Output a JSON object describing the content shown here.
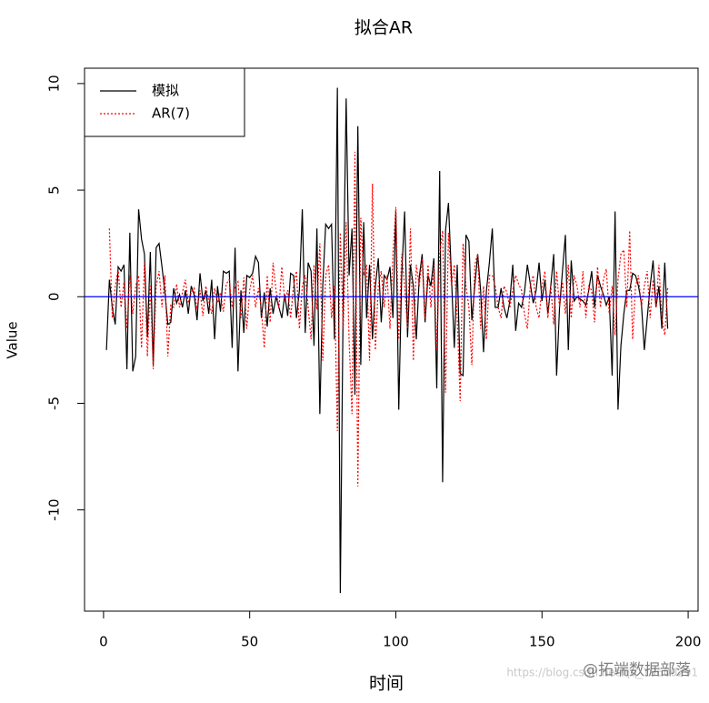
{
  "chart_data": {
    "type": "line",
    "title": "拟合AR",
    "x_label": "时间",
    "y_label": "Value",
    "x": [
      1,
      2,
      3,
      4,
      5,
      6,
      7,
      8,
      9,
      10,
      11,
      12,
      13,
      14,
      15,
      16,
      17,
      18,
      19,
      20,
      21,
      22,
      23,
      24,
      25,
      26,
      27,
      28,
      29,
      30,
      31,
      32,
      33,
      34,
      35,
      36,
      37,
      38,
      39,
      40,
      41,
      42,
      43,
      44,
      45,
      46,
      47,
      48,
      49,
      50,
      51,
      52,
      53,
      54,
      55,
      56,
      57,
      58,
      59,
      60,
      61,
      62,
      63,
      64,
      65,
      66,
      67,
      68,
      69,
      70,
      71,
      72,
      73,
      74,
      75,
      76,
      77,
      78,
      79,
      80,
      81,
      82,
      83,
      84,
      85,
      86,
      87,
      88,
      89,
      90,
      91,
      92,
      93,
      94,
      95,
      96,
      97,
      98,
      99,
      100,
      101,
      102,
      103,
      104,
      105,
      106,
      107,
      108,
      109,
      110,
      111,
      112,
      113,
      114,
      115,
      116,
      117,
      118,
      119,
      120,
      121,
      122,
      123,
      124,
      125,
      126,
      127,
      128,
      129,
      130,
      131,
      132,
      133,
      134,
      135,
      136,
      137,
      138,
      139,
      140,
      141,
      142,
      143,
      144,
      145,
      146,
      147,
      148,
      149,
      150,
      151,
      152,
      153,
      154,
      155,
      156,
      157,
      158,
      159,
      160,
      161,
      162,
      163,
      164,
      165,
      166,
      167,
      168,
      169,
      170,
      171,
      172,
      173,
      174,
      175,
      176,
      177,
      178,
      179,
      180,
      181,
      182,
      183,
      184,
      185,
      186,
      187,
      188,
      189,
      190,
      191,
      192,
      193
    ],
    "series": [
      {
        "name": "模拟",
        "color": "#000000",
        "dash": "solid",
        "values": [
          -2.5,
          0.8,
          -0.5,
          -1.3,
          1.4,
          1.2,
          1.5,
          -3.4,
          3.0,
          -3.5,
          -2.8,
          4.1,
          2.7,
          2.0,
          -1.9,
          2.1,
          -3.2,
          2.3,
          2.5,
          1.4,
          0.2,
          -1.3,
          -1.2,
          0.4,
          -0.3,
          0.1,
          -0.5,
          0.3,
          -0.8,
          0.5,
          0.1,
          -1.1,
          1.1,
          -0.2,
          0.3,
          -0.8,
          0.8,
          -2.0,
          0.5,
          -0.7,
          1.2,
          1.1,
          1.2,
          -2.4,
          2.3,
          -3.5,
          0.3,
          -1.7,
          1.0,
          0.9,
          1.1,
          1.9,
          1.6,
          -1.0,
          0.2,
          -1.4,
          0.4,
          -0.8,
          0.0,
          -0.5,
          -1.0,
          0.1,
          -0.9,
          1.1,
          1.0,
          -1.0,
          0.3,
          4.1,
          -1.7,
          1.6,
          1.2,
          -2.3,
          3.2,
          -5.5,
          0.5,
          3.4,
          3.2,
          3.4,
          -2.0,
          9.8,
          -13.9,
          0.0,
          9.3,
          1.0,
          3.2,
          -4.6,
          8.0,
          -3.2,
          3.5,
          -1.0,
          1.5,
          -2.0,
          0.5,
          1.8,
          -1.2,
          1.0,
          0.8,
          1.4,
          -1.0,
          4.0,
          -5.3,
          1.0,
          4.0,
          -1.9,
          1.5,
          0.5,
          -2.0,
          0.9,
          2.0,
          -1.2,
          1.0,
          0.5,
          1.8,
          -4.3,
          5.9,
          -8.7,
          3.1,
          4.4,
          1.0,
          -2.4,
          1.5,
          -3.6,
          -3.7,
          2.9,
          2.6,
          -1.1,
          0.5,
          2.0,
          0.3,
          -2.6,
          0.3,
          1.6,
          3.2,
          -0.5,
          -0.5,
          0.4,
          -0.5,
          -1.0,
          -0.2,
          1.5,
          -1.6,
          -0.3,
          -0.5,
          0.2,
          1.5,
          0.6,
          -0.3,
          0.3,
          1.6,
          -0.2,
          0.8,
          -0.8,
          0.5,
          2.0,
          -3.7,
          -0.5,
          1.2,
          2.9,
          -2.5,
          1.7,
          -0.2,
          0.0,
          -0.1,
          -0.2,
          -0.4,
          0.3,
          1.2,
          -0.5,
          1.0,
          0.5,
          0.1,
          -0.4,
          0.0,
          -3.7,
          4.0,
          -5.3,
          -2.3,
          -0.8,
          0.3,
          0.3,
          1.1,
          1.0,
          0.5,
          -0.3,
          -2.5,
          -1.0,
          0.5,
          1.7,
          -0.5,
          0.5,
          -1.5,
          1.6,
          -1.5
        ]
      },
      {
        "name": "AR(7)",
        "color": "#ff0000",
        "dash": "dotted",
        "values": [
          null,
          3.2,
          -1.0,
          0.5,
          1.3,
          -0.5,
          0.7,
          -1.5,
          1.0,
          -0.8,
          0.5,
          1.0,
          -2.4,
          1.6,
          -2.8,
          0.5,
          -3.4,
          0.5,
          1.2,
          -0.5,
          1.0,
          -2.8,
          -0.4,
          -0.5,
          0.6,
          -0.5,
          0.2,
          0.8,
          -0.3,
          0.2,
          0.4,
          -0.6,
          0.3,
          -0.9,
          0.5,
          -0.2,
          -0.8,
          0.4,
          -0.3,
          0.2,
          -0.7,
          0.6,
          0.8,
          -0.5,
          0.5,
          0.7,
          -1.0,
          0.9,
          -1.5,
          0.3,
          1.0,
          -0.5,
          0.4,
          -0.6,
          -2.4,
          1.0,
          -1.2,
          1.6,
          0.3,
          -0.5,
          1.4,
          -0.2,
          0.3,
          -1.0,
          0.5,
          1.2,
          -1.5,
          0.5,
          1.0,
          -0.5,
          -2.0,
          1.5,
          -0.6,
          2.5,
          -3.0,
          1.0,
          1.5,
          -1.0,
          0.5,
          -6.3,
          3.0,
          -1.5,
          3.5,
          -2.0,
          -5.5,
          6.8,
          -8.9,
          3.7,
          1.0,
          1.5,
          -3.0,
          5.3,
          -2.5,
          0.5,
          1.2,
          -0.5,
          1.0,
          -1.5,
          2.0,
          4.2,
          -2.0,
          2.0,
          0.5,
          -1.5,
          3.2,
          -3.0,
          1.5,
          0.5,
          1.8,
          -1.0,
          1.5,
          -0.5,
          1.5,
          -2.5,
          2.0,
          3.1,
          -4.5,
          3.0,
          0.5,
          1.5,
          -1.0,
          -4.9,
          2.5,
          0.5,
          -0.5,
          -3.2,
          1.5,
          2.0,
          -1.5,
          0.5,
          -2.0,
          1.0,
          1.0,
          0.5,
          -0.5,
          -1.0,
          0.5,
          0.2,
          -0.5,
          0.3,
          1.0,
          0.6,
          0.3,
          -0.8,
          -1.5,
          0.5,
          1.0,
          -0.5,
          -1.0,
          0.5,
          1.2,
          -1.0,
          0.5,
          -1.3,
          1.2,
          -0.5,
          0.7,
          -0.8,
          1.5,
          -1.0,
          1.0,
          0.5,
          -0.5,
          1.2,
          -1.0,
          0.5,
          0.3,
          -1.2,
          1.4,
          -0.5,
          0.8,
          1.3,
          -0.8,
          0.5,
          -1.8,
          0.8,
          2.0,
          2.2,
          -0.5,
          3.1,
          -2.0,
          0.5,
          1.0,
          -0.5,
          0.5,
          1.2,
          -1.0,
          0.8,
          -0.5,
          1.5,
          -1.0,
          -1.8,
          0.4
        ]
      }
    ],
    "hline": {
      "value": 0,
      "color": "#0000ff"
    },
    "xlim": [
      -6.5,
      203.4
    ],
    "ylim": [
      -14.75,
      10.72
    ],
    "xticks": [
      0,
      50,
      100,
      150,
      200
    ],
    "yticks": [
      -10,
      -5,
      0,
      5,
      10
    ],
    "legend": "top-left",
    "watermark": [
      "https://blog.csdn.net/qq_19600291",
      "@拓端数据部落"
    ]
  }
}
